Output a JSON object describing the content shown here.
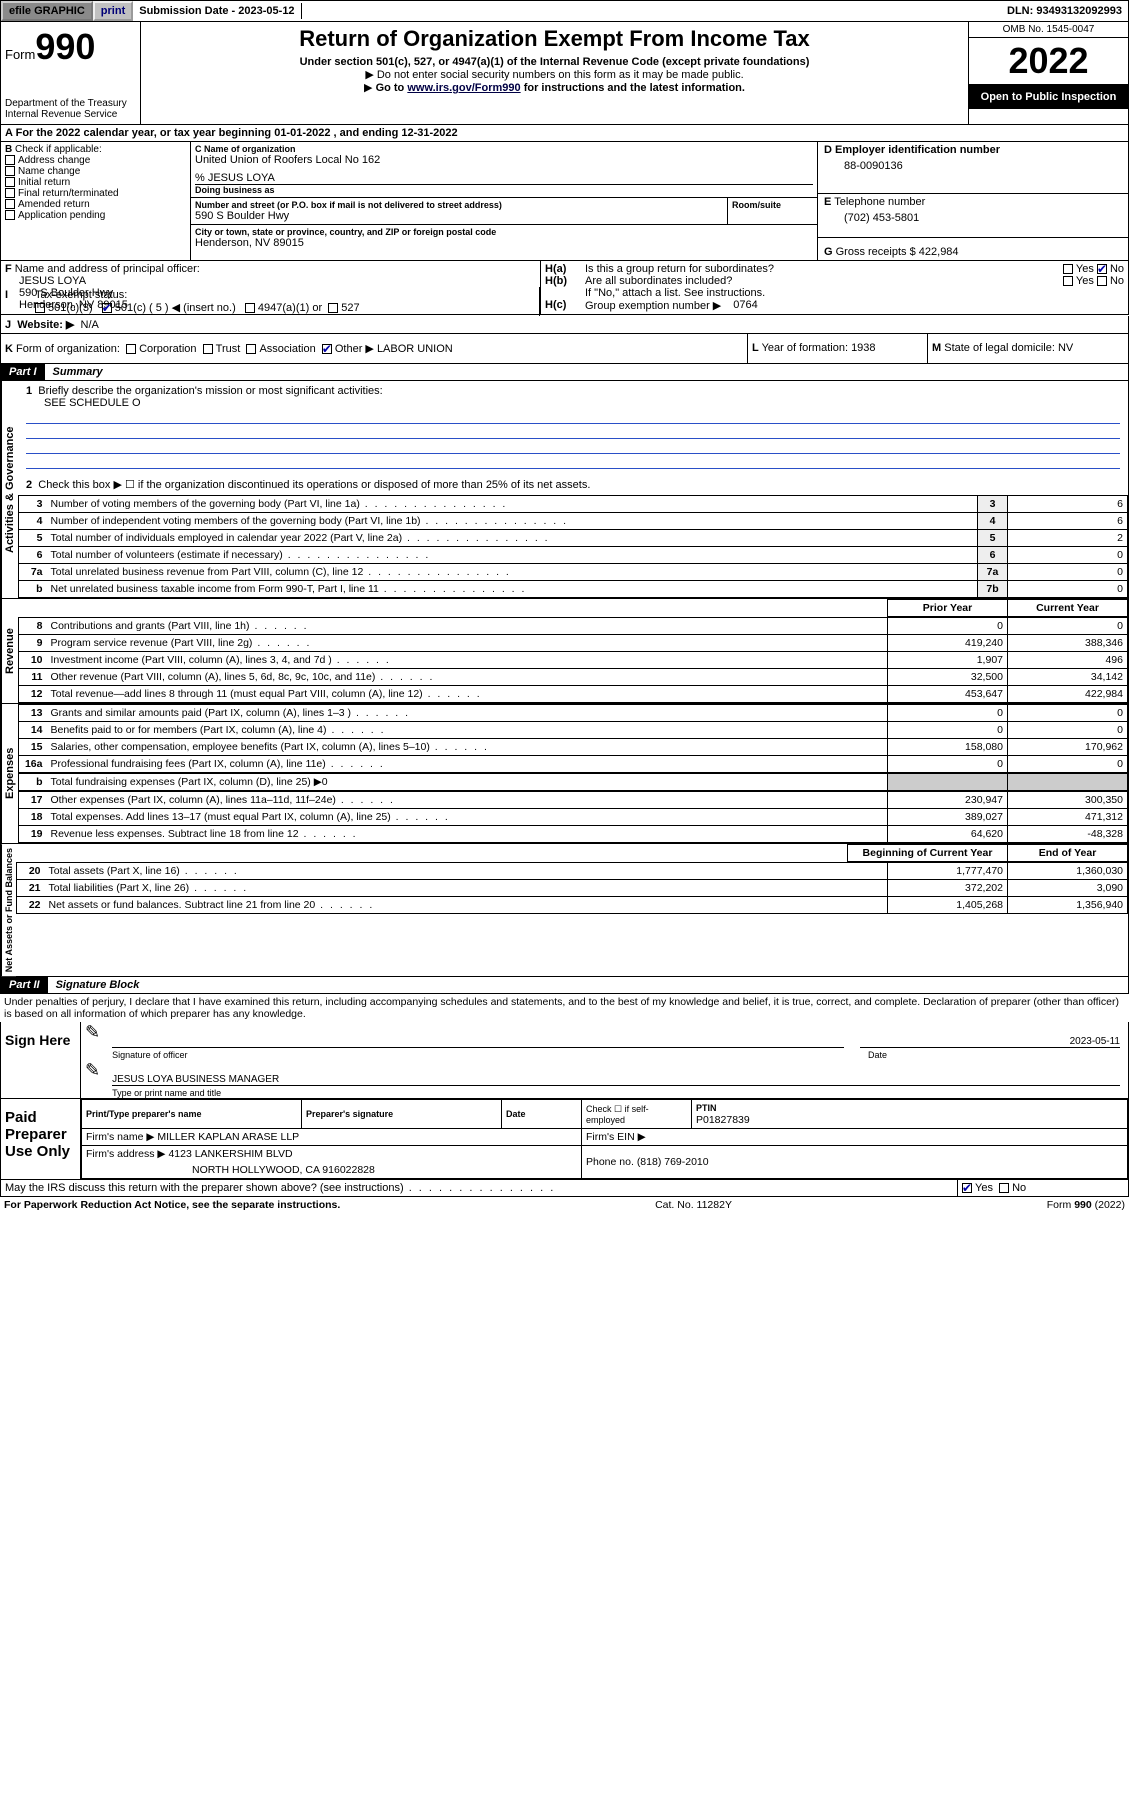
{
  "topbar": {
    "graphic": "efile GRAPHIC",
    "print": "print",
    "sub_date_label": "Submission Date - ",
    "sub_date": "2023-05-12",
    "dln": "DLN: 93493132092993"
  },
  "header": {
    "form_word": "Form",
    "form_num": "990",
    "dept": "Department of the Treasury",
    "irs": "Internal Revenue Service",
    "title": "Return of Organization Exempt From Income Tax",
    "sub1": "Under section 501(c), 527, or 4947(a)(1) of the Internal Revenue Code (except private foundations)",
    "sub2": "Do not enter social security numbers on this form as it may be made public.",
    "sub3_pre": "Go to ",
    "sub3_link": "www.irs.gov/Form990",
    "sub3_post": " for instructions and the latest information.",
    "omb": "OMB No. 1545-0047",
    "year": "2022",
    "open": "Open to Public Inspection"
  },
  "period": "For the 2022 calendar year, or tax year beginning 01-01-2022   , and ending 12-31-2022",
  "B": {
    "label": "Check if applicable:",
    "items": [
      "Address change",
      "Name change",
      "Initial return",
      "Final return/terminated",
      "Amended return",
      "Application pending"
    ]
  },
  "C": {
    "name_lbl": "Name of organization",
    "name": "United Union of Roofers Local No 162",
    "care_lbl": "% JESUS LOYA",
    "dba_lbl": "Doing business as",
    "street_lbl": "Number and street (or P.O. box if mail is not delivered to street address)",
    "room_lbl": "Room/suite",
    "street": "590 S Boulder Hwy",
    "city_lbl": "City or town, state or province, country, and ZIP or foreign postal code",
    "city": "Henderson, NV  89015"
  },
  "D": {
    "lbl": "Employer identification number",
    "val": "88-0090136"
  },
  "E": {
    "lbl": "Telephone number",
    "val": "(702) 453-5801"
  },
  "G": {
    "lbl": "Gross receipts $",
    "val": "422,984"
  },
  "F": {
    "lbl": "Name and address of principal officer:",
    "name": "JESUS LOYA",
    "addr1": "590 S Boulder Hwy",
    "addr2": "Henderson, NV  89015"
  },
  "H": {
    "a": "Is this a group return for subordinates?",
    "b": "Are all subordinates included?",
    "note": "If \"No,\" attach a list. See instructions.",
    "c_lbl": "Group exemption number ▶",
    "c_val": "0764",
    "yes": "Yes",
    "no": "No"
  },
  "I": {
    "lbl": "Tax-exempt status:",
    "o1": "501(c)(3)",
    "o2": "501(c) ( 5 ) ◀ (insert no.)",
    "o3": "4947(a)(1) or",
    "o4": "527"
  },
  "J": {
    "lbl": "Website: ▶",
    "val": "N/A"
  },
  "K": {
    "lbl": "Form of organization:",
    "o1": "Corporation",
    "o2": "Trust",
    "o3": "Association",
    "o4": "Other ▶",
    "val": "LABOR UNION"
  },
  "L": {
    "lbl": "Year of formation:",
    "val": "1938"
  },
  "M": {
    "lbl": "State of legal domicile:",
    "val": "NV"
  },
  "part1": {
    "hdr": "Part I",
    "title": "Summary"
  },
  "summary": {
    "q1": "Briefly describe the organization's mission or most significant activities:",
    "q1v": "SEE SCHEDULE O",
    "q2": "Check this box ▶ ☐  if the organization discontinued its operations or disposed of more than 25% of its net assets.",
    "rows_single": [
      {
        "n": "3",
        "d": "Number of voting members of the governing body (Part VI, line 1a)",
        "ln": "3",
        "v": "6"
      },
      {
        "n": "4",
        "d": "Number of independent voting members of the governing body (Part VI, line 1b)",
        "ln": "4",
        "v": "6"
      },
      {
        "n": "5",
        "d": "Total number of individuals employed in calendar year 2022 (Part V, line 2a)",
        "ln": "5",
        "v": "2"
      },
      {
        "n": "6",
        "d": "Total number of volunteers (estimate if necessary)",
        "ln": "6",
        "v": "0"
      },
      {
        "n": "7a",
        "d": "Total unrelated business revenue from Part VIII, column (C), line 12",
        "ln": "7a",
        "v": "0"
      },
      {
        "n": "b",
        "d": "Net unrelated business taxable income from Form 990-T, Part I, line 11",
        "ln": "7b",
        "v": "0"
      }
    ],
    "col_prior": "Prior Year",
    "col_curr": "Current Year",
    "rev_rows": [
      {
        "n": "8",
        "d": "Contributions and grants (Part VIII, line 1h)",
        "p": "0",
        "c": "0"
      },
      {
        "n": "9",
        "d": "Program service revenue (Part VIII, line 2g)",
        "p": "419,240",
        "c": "388,346"
      },
      {
        "n": "10",
        "d": "Investment income (Part VIII, column (A), lines 3, 4, and 7d )",
        "p": "1,907",
        "c": "496"
      },
      {
        "n": "11",
        "d": "Other revenue (Part VIII, column (A), lines 5, 6d, 8c, 9c, 10c, and 11e)",
        "p": "32,500",
        "c": "34,142"
      },
      {
        "n": "12",
        "d": "Total revenue—add lines 8 through 11 (must equal Part VIII, column (A), line 12)",
        "p": "453,647",
        "c": "422,984"
      }
    ],
    "exp_rows": [
      {
        "n": "13",
        "d": "Grants and similar amounts paid (Part IX, column (A), lines 1–3 )",
        "p": "0",
        "c": "0"
      },
      {
        "n": "14",
        "d": "Benefits paid to or for members (Part IX, column (A), line 4)",
        "p": "0",
        "c": "0"
      },
      {
        "n": "15",
        "d": "Salaries, other compensation, employee benefits (Part IX, column (A), lines 5–10)",
        "p": "158,080",
        "c": "170,962"
      },
      {
        "n": "16a",
        "d": "Professional fundraising fees (Part IX, column (A), line 11e)",
        "p": "0",
        "c": "0"
      }
    ],
    "exp_b": "Total fundraising expenses (Part IX, column (D), line 25) ▶0",
    "exp_rows2": [
      {
        "n": "17",
        "d": "Other expenses (Part IX, column (A), lines 11a–11d, 11f–24e)",
        "p": "230,947",
        "c": "300,350"
      },
      {
        "n": "18",
        "d": "Total expenses. Add lines 13–17 (must equal Part IX, column (A), line 25)",
        "p": "389,027",
        "c": "471,312"
      },
      {
        "n": "19",
        "d": "Revenue less expenses. Subtract line 18 from line 12",
        "p": "64,620",
        "c": "-48,328"
      }
    ],
    "col_beg": "Beginning of Current Year",
    "col_end": "End of Year",
    "net_rows": [
      {
        "n": "20",
        "d": "Total assets (Part X, line 16)",
        "p": "1,777,470",
        "c": "1,360,030"
      },
      {
        "n": "21",
        "d": "Total liabilities (Part X, line 26)",
        "p": "372,202",
        "c": "3,090"
      },
      {
        "n": "22",
        "d": "Net assets or fund balances. Subtract line 21 from line 20",
        "p": "1,405,268",
        "c": "1,356,940"
      }
    ]
  },
  "vert": {
    "ag": "Activities & Governance",
    "rev": "Revenue",
    "exp": "Expenses",
    "net": "Net Assets or Fund Balances"
  },
  "part2": {
    "hdr": "Part II",
    "title": "Signature Block"
  },
  "sig": {
    "decl": "Under penalties of perjury, I declare that I have examined this return, including accompanying schedules and statements, and to the best of my knowledge and belief, it is true, correct, and complete. Declaration of preparer (other than officer) is based on all information of which preparer has any knowledge.",
    "sign_here": "Sign Here",
    "sig_officer": "Signature of officer",
    "date": "Date",
    "date_val": "2023-05-11",
    "name_title": "JESUS LOYA  BUSINESS MANAGER",
    "type_name": "Type or print name and title",
    "paid": "Paid Preparer Use Only",
    "prep_name": "Print/Type preparer's name",
    "prep_sig": "Preparer's signature",
    "check_se": "Check ☐ if self-employed",
    "ptin_lbl": "PTIN",
    "ptin": "P01827839",
    "firm_name_lbl": "Firm's name   ▶",
    "firm_name": "MILLER KAPLAN ARASE LLP",
    "firm_ein": "Firm's EIN ▶",
    "firm_addr_lbl": "Firm's address ▶",
    "firm_addr1": "4123 LANKERSHIM BLVD",
    "firm_addr2": "NORTH HOLLYWOOD, CA  916022828",
    "phone_lbl": "Phone no.",
    "phone": "(818) 769-2010",
    "discuss": "May the IRS discuss this return with the preparer shown above? (see instructions)"
  },
  "footer": {
    "pra": "For Paperwork Reduction Act Notice, see the separate instructions.",
    "cat": "Cat. No. 11282Y",
    "form": "Form 990 (2022)"
  }
}
